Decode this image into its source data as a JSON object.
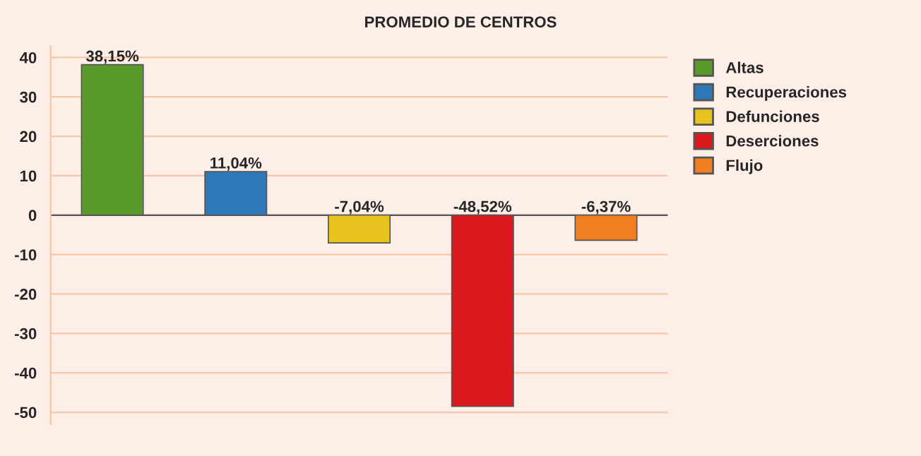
{
  "chart_data": {
    "type": "bar",
    "title": "PROMEDIO DE CENTROS",
    "categories": [
      null,
      null,
      null,
      null,
      null
    ],
    "series": [
      {
        "name": "Altas",
        "color": "#5a9a2c",
        "values": [
          38.15,
          null,
          null,
          null,
          null
        ],
        "value_labels": [
          "38,15%",
          null,
          null,
          null,
          null
        ]
      },
      {
        "name": "Recuperaciones",
        "color": "#2f78b8",
        "values": [
          null,
          11.04,
          null,
          null,
          null
        ],
        "value_labels": [
          null,
          "11,04%",
          null,
          null,
          null
        ]
      },
      {
        "name": "Defunciones",
        "color": "#e8c21e",
        "values": [
          null,
          null,
          -7.04,
          null,
          null
        ],
        "value_labels": [
          null,
          null,
          "-7,04%",
          null,
          null
        ]
      },
      {
        "name": "Deserciones",
        "color": "#da1a1f",
        "values": [
          null,
          null,
          null,
          -48.52,
          null
        ],
        "value_labels": [
          null,
          null,
          null,
          "-48,52%",
          null
        ]
      },
      {
        "name": "Flujo",
        "color": "#f07f22",
        "values": [
          null,
          null,
          null,
          null,
          -6.37
        ],
        "value_labels": [
          null,
          null,
          null,
          null,
          "-6,37%"
        ]
      }
    ],
    "ylim": [
      -53,
      43
    ],
    "yticks": [
      -50,
      -40,
      -30,
      -20,
      -10,
      0,
      10,
      20,
      30,
      40
    ],
    "grid": "y",
    "legend": "right"
  }
}
